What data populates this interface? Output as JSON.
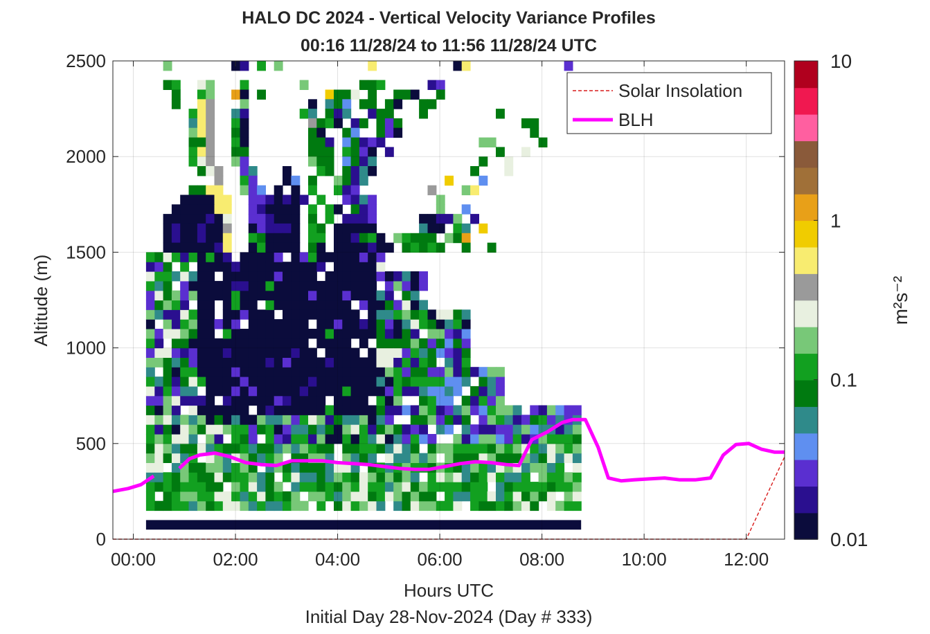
{
  "chart_data": {
    "type": "heatmap",
    "title": "HALO DC 2024 - Vertical Velocity Variance Profiles",
    "subtitle": "00:16 11/28/24 to 11:56 11/28/24  UTC",
    "xlabel": "Hours UTC",
    "ylabel": "Altitude (m)",
    "footer": "Initial Day 28-Nov-2024 (Day # 333)",
    "xlim": [
      -0.4,
      12.75
    ],
    "ylim": [
      0,
      2500
    ],
    "x_ticks": [
      {
        "value": 0,
        "label": "00:00"
      },
      {
        "value": 2,
        "label": "02:00"
      },
      {
        "value": 4,
        "label": "04:00"
      },
      {
        "value": 6,
        "label": "06:00"
      },
      {
        "value": 8,
        "label": "08:00"
      },
      {
        "value": 10,
        "label": "10:00"
      },
      {
        "value": 12,
        "label": "12:00"
      }
    ],
    "y_ticks": [
      {
        "value": 0,
        "label": "0"
      },
      {
        "value": 500,
        "label": "500"
      },
      {
        "value": 1000,
        "label": "1000"
      },
      {
        "value": 1500,
        "label": "1500"
      },
      {
        "value": 2000,
        "label": "2000"
      },
      {
        "value": 2500,
        "label": "2500"
      }
    ],
    "grid": true,
    "colorbar": {
      "scale": "log",
      "range": [
        0.01,
        10
      ],
      "unit_label": "m²s⁻²",
      "ticks": [
        {
          "value": 0.01,
          "label": "0.01"
        },
        {
          "value": 0.1,
          "label": "0.1"
        },
        {
          "value": 1,
          "label": "1"
        },
        {
          "value": 10,
          "label": "10"
        }
      ],
      "colors": [
        "#0b0c3c",
        "#2a0f8f",
        "#5a2fd0",
        "#5f8ff0",
        "#2f8a8a",
        "#007a10",
        "#12a020",
        "#78c878",
        "#e8f0e0",
        "#9a9a9a",
        "#f8ec70",
        "#f0cc00",
        "#e8a018",
        "#a07038",
        "#8a5a3a",
        "#ff5fa0",
        "#f01850",
        "#b0001e"
      ]
    },
    "legend": {
      "placement": "top-right",
      "entries": [
        {
          "name": "Solar Insolation",
          "style": "dashed",
          "color": "#d81a1a"
        },
        {
          "name": "BLH",
          "style": "solid",
          "color": "#ff00ff"
        }
      ]
    },
    "heatmap": {
      "x_start": 0.25,
      "x_step": 0.167,
      "y_step": 50,
      "bottom_row_altitude": 100,
      "bottom_row_color": "#0b0c3c",
      "columns": 51,
      "description_key": "palette indices per altitude bin, built from rows below (index into colorbar.colors)",
      "rows": [
        {
          "y": 2450,
          "cells": "..h.......ab.g.h..........k.........ak...........c"
        },
        {
          "y": 2350,
          "cells": "..fg..ih...g......h......ffg.....bc..............."
        },
        {
          "y": 2300,
          "cells": "...f..gh..ma.f.......lffi.f..ffa..f..............."
        },
        {
          "y": 2250,
          "cells": "...f..kj...h.......a.efd.ff.fa..ff..............."
        },
        {
          "y": 2200,
          "cells": ".....gkj..eb......ge.fbe..bff...f........f........"
        },
        {
          "y": 2150,
          "cells": ".....ekj..ga.......jfga.bf.fcf..............ff....."
        },
        {
          "y": 2100,
          "cells": ".....hkj..fa.......fa..fd..fca...............f...."
        },
        {
          "y": 2050,
          "cells": ".....ffj..ga.......ffb.dfbcb...........hh.....f..."
        },
        {
          "y": 2000,
          "cells": ".....gkj..ff.......fff.gfca.b............f..i...."
        },
        {
          "y": 1950,
          "cells": ".....gij..hc.......hff.dfbe............f..i....."
        },
        {
          "y": 1900,
          "cells": "......fij..ce...a...gf.fbea...........f...i....."
        },
        {
          "y": 1850,
          "cells": "........j..gc...ad.f..hfbe.........l...d........"
        },
        {
          "y": 1800,
          "cells": ".....ffkk..hcd.a.a.g..gbc........j...hk........"
        },
        {
          "y": 1750,
          "cells": "....aaaakk..ccbabab.g..cbec.......h..........."
        },
        {
          "y": 1700,
          "cells": "...aaaaakk..cbaaaa.g.ga.fbc.......h..d......"
        },
        {
          "y": 1650,
          "cells": "..aaaaabai..ccbaaa.f.g.bbbc.....aabbh.b....."
        },
        {
          "y": 1600,
          "cells": "..abaabaaj..acbbba.gf.aaaaa.....eaa.ge.l...."
        },
        {
          "y": 1550,
          "cells": "..abaabaak..gfaaaa.gg.aabfga.hgfff.hfm....."
        },
        {
          "y": 1500,
          "cells": "..aaaaaabk..agaaaa.fa.aaaabaa.fgfgf..f..f....."
        }
      ]
    },
    "blh_series": {
      "name": "BLH",
      "x": [
        -0.4,
        -0.1,
        0.15,
        0.4,
        0.65,
        0.9,
        1.1,
        1.3,
        1.6,
        1.9,
        2.2,
        2.5,
        2.8,
        3.1,
        3.4,
        3.7,
        4.0,
        4.3,
        4.6,
        4.9,
        5.2,
        5.5,
        5.8,
        6.1,
        6.4,
        6.7,
        7.0,
        7.3,
        7.55,
        7.8,
        8.1,
        8.4,
        8.6,
        8.85,
        9.1,
        9.3,
        9.55,
        9.8,
        10.1,
        10.4,
        10.7,
        11.0,
        11.3,
        11.55,
        11.8,
        12.05,
        12.3,
        12.55,
        12.75
      ],
      "y": [
        250,
        265,
        285,
        330,
        null,
        370,
        420,
        440,
        450,
        430,
        400,
        390,
        385,
        410,
        410,
        410,
        400,
        395,
        390,
        380,
        370,
        365,
        365,
        380,
        395,
        405,
        400,
        390,
        385,
        520,
        560,
        610,
        625,
        625,
        480,
        320,
        305,
        310,
        315,
        320,
        310,
        310,
        320,
        440,
        495,
        500,
        470,
        455,
        455
      ]
    },
    "solar_series": {
      "name": "Solar Insolation",
      "x": [
        -0.4,
        12.0,
        12.75
      ],
      "y": [
        0,
        0,
        430
      ]
    }
  }
}
